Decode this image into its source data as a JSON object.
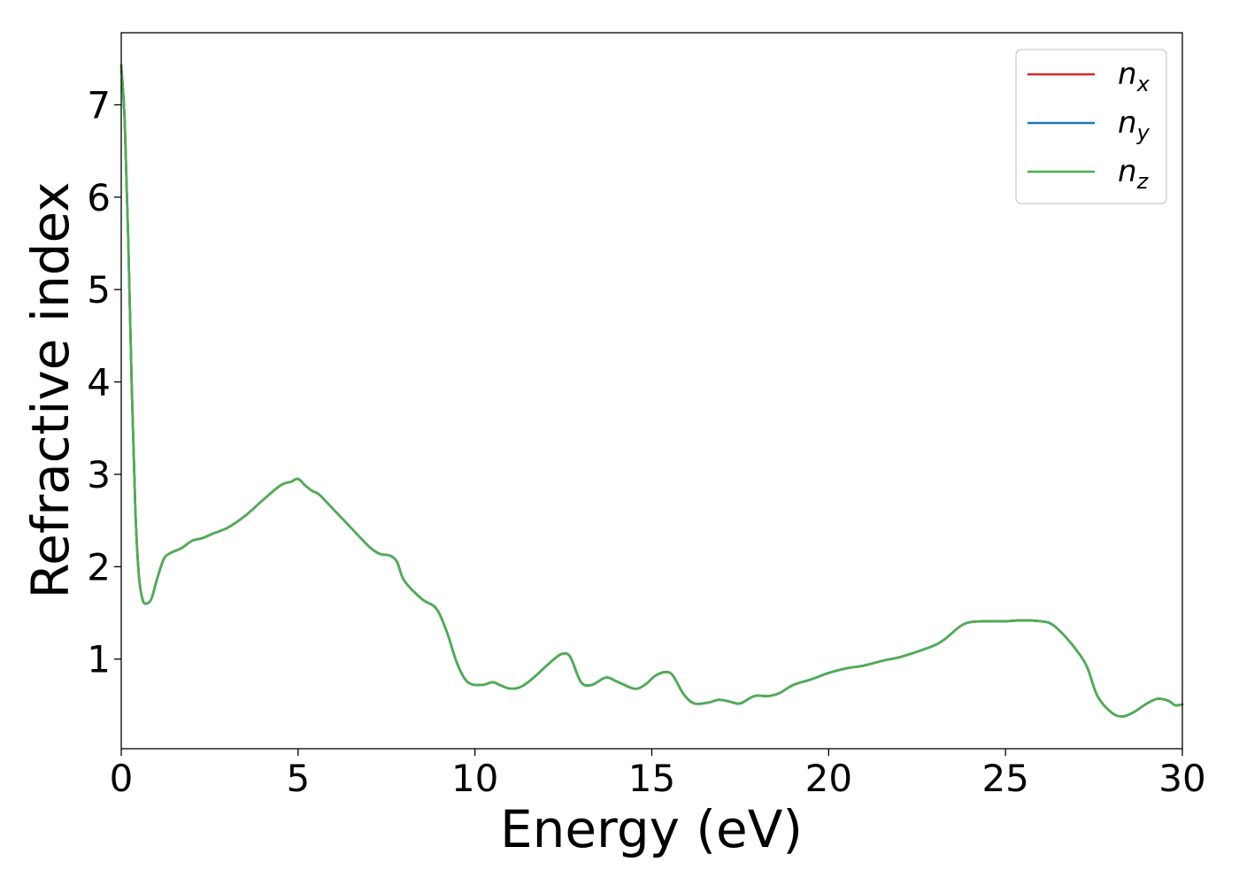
{
  "chart_data": {
    "type": "line",
    "title": "",
    "xlabel": "Energy (eV)",
    "ylabel": "Refractive index",
    "xlim": [
      0,
      30
    ],
    "ylim": [
      0.03,
      7.78
    ],
    "xticks": [
      0,
      5,
      10,
      15,
      20,
      25,
      30
    ],
    "yticks": [
      1,
      2,
      3,
      4,
      5,
      6,
      7
    ],
    "grid": false,
    "legend_position": "top-right",
    "x": [
      0.0,
      0.1,
      0.2,
      0.3,
      0.4,
      0.5,
      0.6,
      0.7,
      0.85,
      1.0,
      1.2,
      1.4,
      1.7,
      2.0,
      2.3,
      2.6,
      3.0,
      3.5,
      4.0,
      4.5,
      4.8,
      5.0,
      5.2,
      5.4,
      5.6,
      6.0,
      6.5,
      7.0,
      7.3,
      7.6,
      7.8,
      8.0,
      8.5,
      8.9,
      9.2,
      9.5,
      9.8,
      10.2,
      10.5,
      10.7,
      11.0,
      11.3,
      11.6,
      12.0,
      12.3,
      12.5,
      12.7,
      13.0,
      13.3,
      13.7,
      14.0,
      14.5,
      14.8,
      15.1,
      15.4,
      15.6,
      15.9,
      16.2,
      16.6,
      16.9,
      17.2,
      17.5,
      17.9,
      18.3,
      18.6,
      19.0,
      19.5,
      20.0,
      20.5,
      21.0,
      21.5,
      22.0,
      22.5,
      23.0,
      23.3,
      23.7,
      24.0,
      24.5,
      25.0,
      25.5,
      26.0,
      26.3,
      26.6,
      27.0,
      27.3,
      27.6,
      28.0,
      28.3,
      28.6,
      29.0,
      29.3,
      29.6,
      29.8,
      30.0
    ],
    "series": [
      {
        "name": "x",
        "color": "#d62728",
        "values": [
          7.43,
          6.8,
          5.5,
          3.9,
          2.6,
          1.9,
          1.65,
          1.6,
          1.65,
          1.85,
          2.08,
          2.15,
          2.2,
          2.28,
          2.31,
          2.36,
          2.42,
          2.55,
          2.72,
          2.88,
          2.92,
          2.95,
          2.88,
          2.82,
          2.78,
          2.62,
          2.42,
          2.22,
          2.14,
          2.12,
          2.05,
          1.85,
          1.65,
          1.55,
          1.3,
          0.95,
          0.75,
          0.72,
          0.75,
          0.72,
          0.68,
          0.7,
          0.78,
          0.92,
          1.02,
          1.06,
          1.02,
          0.75,
          0.72,
          0.8,
          0.76,
          0.68,
          0.72,
          0.82,
          0.86,
          0.82,
          0.62,
          0.52,
          0.53,
          0.56,
          0.54,
          0.52,
          0.6,
          0.6,
          0.63,
          0.72,
          0.78,
          0.85,
          0.9,
          0.93,
          0.98,
          1.02,
          1.08,
          1.15,
          1.22,
          1.35,
          1.4,
          1.41,
          1.41,
          1.42,
          1.41,
          1.38,
          1.28,
          1.1,
          0.92,
          0.6,
          0.42,
          0.38,
          0.42,
          0.52,
          0.57,
          0.55,
          0.5,
          0.51
        ]
      },
      {
        "name": "y",
        "color": "#1f77b4",
        "values": [
          7.43,
          6.8,
          5.5,
          3.9,
          2.6,
          1.9,
          1.65,
          1.6,
          1.65,
          1.85,
          2.08,
          2.15,
          2.2,
          2.28,
          2.31,
          2.36,
          2.42,
          2.55,
          2.72,
          2.88,
          2.92,
          2.95,
          2.88,
          2.82,
          2.78,
          2.62,
          2.42,
          2.22,
          2.14,
          2.12,
          2.05,
          1.85,
          1.65,
          1.55,
          1.3,
          0.95,
          0.75,
          0.72,
          0.75,
          0.72,
          0.68,
          0.7,
          0.78,
          0.92,
          1.02,
          1.06,
          1.02,
          0.75,
          0.72,
          0.8,
          0.76,
          0.68,
          0.72,
          0.82,
          0.86,
          0.82,
          0.62,
          0.52,
          0.53,
          0.56,
          0.54,
          0.52,
          0.6,
          0.6,
          0.63,
          0.72,
          0.78,
          0.85,
          0.9,
          0.93,
          0.98,
          1.02,
          1.08,
          1.15,
          1.22,
          1.35,
          1.4,
          1.41,
          1.41,
          1.42,
          1.41,
          1.38,
          1.28,
          1.1,
          0.92,
          0.6,
          0.42,
          0.38,
          0.42,
          0.52,
          0.57,
          0.55,
          0.5,
          0.51
        ]
      },
      {
        "name": "z",
        "color": "#4caf50",
        "values": [
          7.43,
          6.8,
          5.5,
          3.9,
          2.6,
          1.9,
          1.65,
          1.6,
          1.65,
          1.85,
          2.08,
          2.15,
          2.2,
          2.28,
          2.31,
          2.36,
          2.42,
          2.55,
          2.72,
          2.88,
          2.92,
          2.95,
          2.88,
          2.82,
          2.78,
          2.62,
          2.42,
          2.22,
          2.14,
          2.12,
          2.05,
          1.85,
          1.65,
          1.55,
          1.3,
          0.95,
          0.75,
          0.72,
          0.75,
          0.72,
          0.68,
          0.7,
          0.78,
          0.92,
          1.02,
          1.06,
          1.02,
          0.75,
          0.72,
          0.8,
          0.76,
          0.68,
          0.72,
          0.82,
          0.86,
          0.82,
          0.62,
          0.52,
          0.53,
          0.56,
          0.54,
          0.52,
          0.6,
          0.6,
          0.63,
          0.72,
          0.78,
          0.85,
          0.9,
          0.93,
          0.98,
          1.02,
          1.08,
          1.15,
          1.22,
          1.35,
          1.4,
          1.41,
          1.41,
          1.42,
          1.41,
          1.38,
          1.28,
          1.1,
          0.92,
          0.6,
          0.42,
          0.38,
          0.42,
          0.52,
          0.57,
          0.55,
          0.5,
          0.51
        ]
      }
    ],
    "legend": [
      {
        "base": "n",
        "sub": "x",
        "color": "#d62728"
      },
      {
        "base": "n",
        "sub": "y",
        "color": "#1f77b4"
      },
      {
        "base": "n",
        "sub": "z",
        "color": "#4caf50"
      }
    ]
  }
}
